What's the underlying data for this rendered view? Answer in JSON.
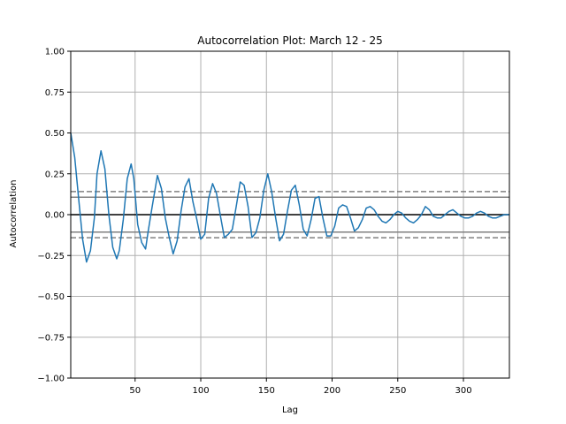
{
  "chart_data": {
    "type": "line",
    "title": "Autocorrelation Plot: March 12 - 25",
    "xlabel": "Lag",
    "ylabel": "Autocorrelation",
    "xlim": [
      1,
      335
    ],
    "ylim": [
      -1.0,
      1.0
    ],
    "xticks": [
      50,
      100,
      150,
      200,
      250,
      300
    ],
    "xtick_labels": [
      "50",
      "100",
      "150",
      "200",
      "250",
      "300"
    ],
    "yticks": [
      1.0,
      0.75,
      0.5,
      0.25,
      0.0,
      -0.25,
      -0.5,
      -0.75,
      -1.0
    ],
    "ytick_labels": [
      "1.00",
      "0.75",
      "0.50",
      "0.25",
      "0.00",
      "−0.25",
      "−0.50",
      "−0.75",
      "−1.00"
    ],
    "grid": true,
    "reference_lines": {
      "zero": 0.0,
      "z95": [
        0.107,
        -0.107
      ],
      "z99": [
        0.141,
        -0.141
      ]
    },
    "colors": {
      "series": "#1f77b4",
      "grid": "#b0b0b0",
      "zero_line": "#000000",
      "conf_lines": "#808080"
    },
    "series": [
      {
        "x": [
          1,
          4,
          7,
          10,
          13,
          16,
          19,
          21,
          24,
          27,
          30,
          33,
          36,
          38,
          41,
          44,
          47,
          49,
          52,
          55,
          58,
          60,
          63,
          67,
          70,
          73,
          76,
          79,
          82,
          85,
          88,
          91,
          94,
          97,
          100,
          103,
          106,
          109,
          112,
          115,
          118,
          121,
          124,
          127,
          130,
          133,
          136,
          139,
          142,
          145,
          148,
          151,
          154,
          157,
          160,
          163,
          166,
          169,
          172,
          175,
          178,
          181,
          184,
          187,
          190,
          193,
          196,
          199,
          202,
          205,
          208,
          211,
          214,
          217,
          220,
          223,
          226,
          229,
          232,
          235,
          238,
          241,
          244,
          247,
          250,
          253,
          256,
          259,
          262,
          265,
          268,
          271,
          274,
          277,
          280,
          283,
          286,
          289,
          292,
          295,
          298,
          301,
          304,
          307,
          310,
          313,
          316,
          319,
          322,
          325,
          328,
          331,
          335
        ],
        "y": [
          0.5,
          0.35,
          0.1,
          -0.15,
          -0.29,
          -0.22,
          -0.02,
          0.25,
          0.39,
          0.28,
          0.0,
          -0.2,
          -0.27,
          -0.22,
          -0.03,
          0.22,
          0.31,
          0.22,
          -0.06,
          -0.17,
          -0.21,
          -0.1,
          0.05,
          0.24,
          0.16,
          -0.02,
          -0.14,
          -0.24,
          -0.16,
          0.02,
          0.17,
          0.22,
          0.08,
          -0.03,
          -0.15,
          -0.12,
          0.1,
          0.19,
          0.13,
          -0.01,
          -0.14,
          -0.12,
          -0.09,
          0.05,
          0.2,
          0.18,
          0.05,
          -0.14,
          -0.11,
          -0.02,
          0.15,
          0.25,
          0.14,
          -0.02,
          -0.16,
          -0.12,
          0.02,
          0.15,
          0.18,
          0.06,
          -0.09,
          -0.13,
          -0.03,
          0.1,
          0.11,
          -0.02,
          -0.13,
          -0.13,
          -0.07,
          0.04,
          0.06,
          0.05,
          -0.02,
          -0.1,
          -0.08,
          -0.03,
          0.04,
          0.05,
          0.03,
          -0.01,
          -0.04,
          -0.05,
          -0.03,
          0.0,
          0.02,
          0.01,
          -0.02,
          -0.04,
          -0.05,
          -0.03,
          0.0,
          0.05,
          0.03,
          -0.01,
          -0.02,
          -0.02,
          0.0,
          0.02,
          0.03,
          0.01,
          -0.01,
          -0.02,
          -0.02,
          -0.01,
          0.01,
          0.02,
          0.01,
          -0.01,
          -0.02,
          -0.02,
          -0.01,
          0.0,
          0.0
        ]
      }
    ]
  }
}
